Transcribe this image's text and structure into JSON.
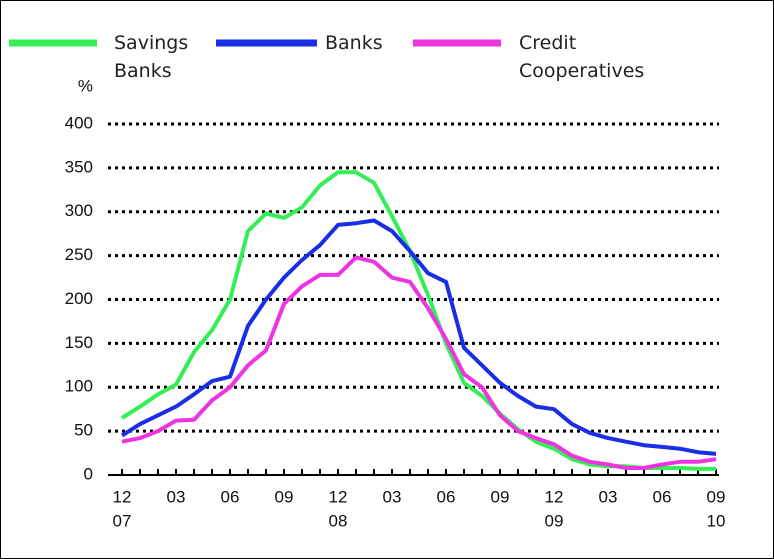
{
  "chart_data": {
    "type": "line",
    "y_unit": "%",
    "categories": [
      "12",
      null,
      null,
      "03",
      null,
      null,
      "06",
      null,
      null,
      "09",
      null,
      null,
      "12",
      null,
      null,
      "03",
      null,
      null,
      "06",
      null,
      null,
      "09",
      null,
      null,
      "12",
      null,
      null,
      "03",
      null,
      null,
      "06",
      null,
      null,
      "09"
    ],
    "category_years": [
      "07",
      null,
      null,
      null,
      null,
      null,
      null,
      null,
      null,
      null,
      null,
      null,
      "08",
      null,
      null,
      null,
      null,
      null,
      null,
      null,
      null,
      null,
      null,
      null,
      "09",
      null,
      null,
      null,
      null,
      null,
      null,
      null,
      null,
      "10"
    ],
    "series": [
      {
        "name": "Savings Banks",
        "color": "#33ee55",
        "values": [
          65,
          78,
          92,
          103,
          140,
          165,
          200,
          278,
          298,
          293,
          305,
          330,
          345,
          345,
          333,
          295,
          255,
          205,
          150,
          105,
          90,
          70,
          52,
          38,
          30,
          18,
          12,
          10,
          10,
          8,
          8,
          8,
          7,
          7
        ]
      },
      {
        "name": "Banks",
        "color": "#1a2ee6",
        "values": [
          45,
          58,
          68,
          78,
          92,
          107,
          112,
          170,
          200,
          225,
          245,
          262,
          285,
          287,
          290,
          278,
          255,
          230,
          220,
          145,
          125,
          105,
          90,
          78,
          75,
          58,
          48,
          42,
          38,
          34,
          32,
          30,
          26,
          24
        ]
      },
      {
        "name": "Credit Cooperatives",
        "color": "#ee33e0",
        "values": [
          38,
          42,
          50,
          62,
          63,
          85,
          100,
          125,
          142,
          195,
          215,
          228,
          228,
          248,
          243,
          225,
          220,
          190,
          155,
          115,
          100,
          68,
          50,
          42,
          35,
          22,
          15,
          12,
          8,
          8,
          12,
          15,
          15,
          18
        ]
      }
    ],
    "ylim": [
      0,
      400
    ],
    "yticks": [
      0,
      50,
      100,
      150,
      200,
      250,
      300,
      350,
      400
    ],
    "grid": true
  }
}
